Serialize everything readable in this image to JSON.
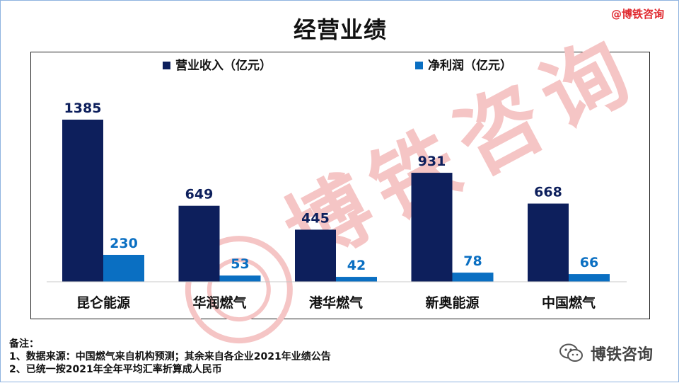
{
  "title": "经营业绩",
  "brand_tag": "@博铁咨询",
  "watermark_text": "博铁咨询",
  "notes": {
    "heading": "备注：",
    "lines": [
      "1、数据来源：中国燃气来自机构预测；其余来自各企业2021年业绩公告",
      "2、已统一按2021年全年平均汇率折算成人民币"
    ]
  },
  "logo_text": "博铁咨询",
  "colors": {
    "revenue": "#0d1f5c",
    "profit": "#0a6fc2",
    "title": "#111111",
    "brand": "#e0282e",
    "watermark": "#f5c5c5",
    "value_label": "#0d1f5c",
    "profit_label": "#0a6fc2"
  },
  "chart_data": {
    "type": "bar",
    "categories": [
      "昆仑能源",
      "华润燃气",
      "港华燃气",
      "新奥能源",
      "中国燃气"
    ],
    "series": [
      {
        "name": "营业收入（亿元）",
        "values": [
          1385,
          649,
          445,
          931,
          668
        ]
      },
      {
        "name": "净利润（亿元）",
        "values": [
          230,
          53,
          42,
          78,
          66
        ]
      }
    ],
    "ylim": [
      0,
      1500
    ],
    "grid": false,
    "legend": "top-center",
    "data_labels": true
  }
}
